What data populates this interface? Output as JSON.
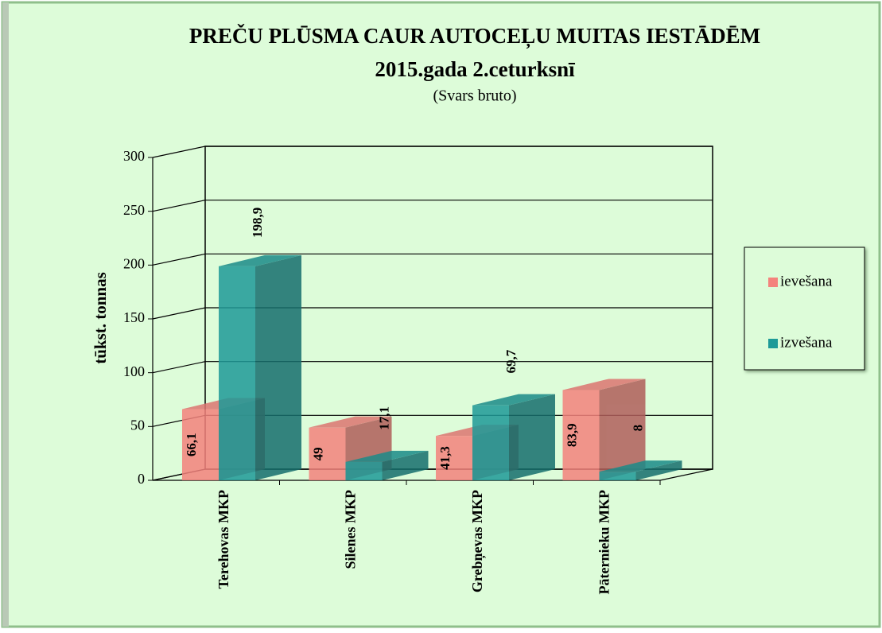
{
  "chart_data": {
    "type": "bar3d",
    "title": [
      "PREČU PLŪSMA CAUR AUTOCEĻU MUITAS IESTĀDĒM",
      "2015.gada 2.ceturksnī"
    ],
    "subtitle": "(Svars bruto)",
    "y_label": "tūkst. tonnas",
    "categories": [
      "Terehovas MKP",
      "Silenes MKP",
      "Grebņevas MKP",
      "Pāternieku MKP"
    ],
    "series": [
      {
        "name": "ievešana",
        "color": "#f4837d",
        "values": [
          66.1,
          49,
          41.3,
          83.9
        ],
        "value_labels": [
          "66,1",
          "49",
          "41,3",
          "83,9"
        ]
      },
      {
        "name": "izvešana",
        "color": "#1e9a98",
        "values": [
          198.9,
          17.1,
          69.7,
          8
        ],
        "value_labels": [
          "198,9",
          "17,1",
          "69,7",
          "8"
        ]
      }
    ],
    "ylim": [
      0,
      300
    ],
    "yticks": [
      0,
      50,
      100,
      150,
      200,
      250,
      300
    ],
    "grid": true,
    "legend": "right"
  }
}
